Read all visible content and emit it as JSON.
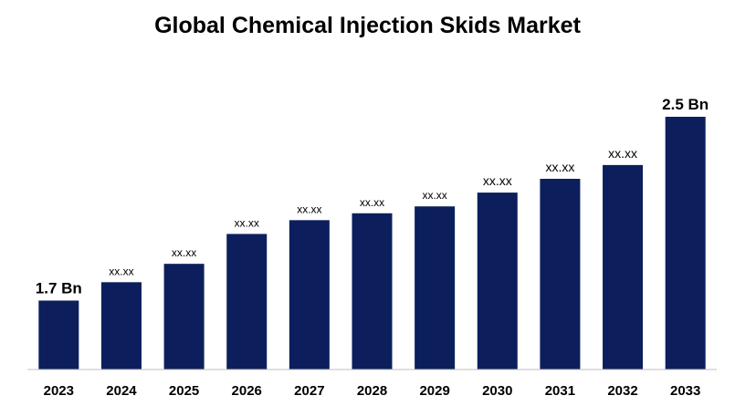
{
  "chart_data": {
    "type": "bar",
    "title": "Global Chemical Injection Skids Market",
    "categories": [
      "2023",
      "2024",
      "2025",
      "2026",
      "2027",
      "2028",
      "2029",
      "2030",
      "2031",
      "2032",
      "2033"
    ],
    "values": [
      1.7,
      1.78,
      1.86,
      1.99,
      2.05,
      2.08,
      2.11,
      2.17,
      2.23,
      2.29,
      2.5
    ],
    "data_labels": [
      "1.7 Bn",
      "xx.xx",
      "xx.xx",
      "xx.xx",
      "xx.xx",
      "xx.xx",
      "xx.xx",
      "xx.xx",
      "xx.xx",
      "xx.xx",
      "2.5 Bn"
    ],
    "xlabel": "",
    "ylabel": "",
    "ylim": [
      1.4,
      2.55
    ],
    "grid": false,
    "legend": "none",
    "colors": {
      "bar": "#0c1f5c",
      "axis": "#bfbfbf",
      "text": "#000000"
    }
  }
}
